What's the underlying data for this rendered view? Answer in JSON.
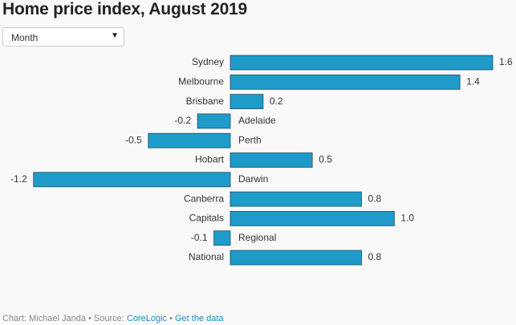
{
  "title": "Home price index, August 2019",
  "dropdown": {
    "selected": "Month",
    "arrow_icon": "triangle-down"
  },
  "chart_data": {
    "type": "bar",
    "orientation": "horizontal",
    "categories": [
      "Sydney",
      "Melbourne",
      "Brisbane",
      "Adelaide",
      "Perth",
      "Hobart",
      "Darwin",
      "Canberra",
      "Capitals",
      "Regional",
      "National"
    ],
    "values": [
      1.6,
      1.4,
      0.2,
      -0.2,
      -0.5,
      0.5,
      -1.2,
      0.8,
      1.0,
      -0.1,
      0.8
    ],
    "value_labels": [
      "1.6",
      "1.4",
      "0.2",
      "-0.2",
      "-0.5",
      "0.5",
      "-1.2",
      "0.8",
      "1.0",
      "-0.1",
      "0.8"
    ],
    "xlim": [
      -1.2,
      1.6
    ],
    "grid": false,
    "bar_color": "#1f9bc9"
  },
  "footer": {
    "prefix": "Chart: Michael Janda • Source: ",
    "source_link": "CoreLogic",
    "separator": " • ",
    "data_link": "Get the data"
  }
}
